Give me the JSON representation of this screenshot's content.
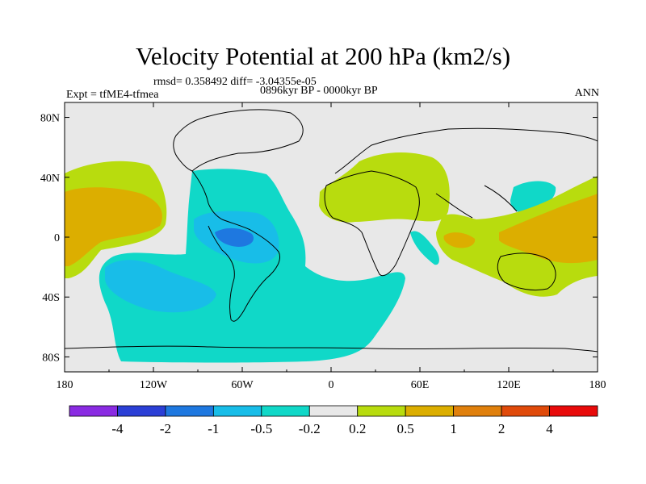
{
  "title": "Velocity Potential at 200 hPa (km2/s)",
  "stats": "rmsd= 0.358492 diff= -3.04355e-05",
  "experiment": "Expt = tfME4-tfmea",
  "period": "0896kyr BP - 0000kyr BP",
  "season": "ANN",
  "axes": {
    "lon_ticks": [
      "180",
      "120W",
      "60W",
      "0",
      "60E",
      "120E",
      "180"
    ],
    "lat_ticks": [
      "80N",
      "40N",
      "0",
      "40S",
      "80S"
    ]
  },
  "colorbar": {
    "colors": [
      "#8a2be2",
      "#2b3fd6",
      "#1e78e0",
      "#18bde8",
      "#10d8c8",
      "#e8e8e8",
      "#b8dc0e",
      "#dcae00",
      "#e0800c",
      "#e04a0a",
      "#e80a0a"
    ],
    "labels": [
      "-4",
      "-2",
      "-1",
      "-0.5",
      "-0.2",
      "0.2",
      "0.5",
      "1",
      "2",
      "4"
    ]
  },
  "field_colors": {
    "background": "#e8e8e8",
    "pos_02": "#b8dc0e",
    "pos_05": "#dcae00",
    "neg_02": "#10d8c8",
    "neg_05": "#18bde8",
    "neg_1": "#1e78e0"
  }
}
